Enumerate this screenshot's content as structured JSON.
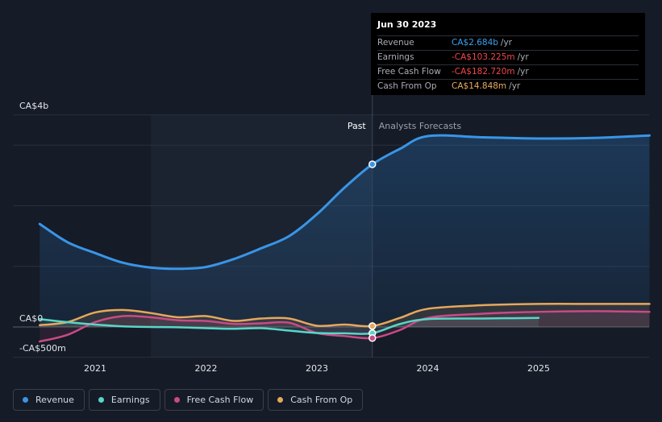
{
  "tooltip": {
    "date": "Jun 30 2023",
    "rows": [
      {
        "label": "Revenue",
        "value": "CA$2.684b",
        "unit": "/yr",
        "color": "#3ea0f0"
      },
      {
        "label": "Earnings",
        "value": "-CA$103.225m",
        "unit": "/yr",
        "color": "#f0464a"
      },
      {
        "label": "Free Cash Flow",
        "value": "-CA$182.720m",
        "unit": "/yr",
        "color": "#f0464a"
      },
      {
        "label": "Cash From Op",
        "value": "CA$14.848m",
        "unit": "/yr",
        "color": "#e9ab5e"
      }
    ]
  },
  "legend": [
    {
      "label": "Revenue",
      "color": "#3a95e6"
    },
    {
      "label": "Earnings",
      "color": "#58d6c8"
    },
    {
      "label": "Free Cash Flow",
      "color": "#c84b86"
    },
    {
      "label": "Cash From Op",
      "color": "#e6a85c"
    }
  ],
  "chart_data": {
    "type": "line",
    "past_label": "Past",
    "forecast_label": "Analysts Forecasts",
    "y_labels": [
      "CA$4b",
      "CA$0",
      "-CA$500m"
    ],
    "y_label_values": [
      4000,
      0,
      -500
    ],
    "ylim": [
      -500,
      4000
    ],
    "grid_lines": [
      -500,
      0,
      1000,
      2000,
      3000,
      3500
    ],
    "x_tick_labels": [
      "2021",
      "2022",
      "2023",
      "2024",
      "2025"
    ],
    "x_tick_values": [
      2021.0,
      2022.0,
      2023.0,
      2024.0,
      2025.0
    ],
    "xlim": [
      2020.25,
      2026.0
    ],
    "past_region": [
      2021.5,
      2023.5
    ],
    "divider_x": 2023.5,
    "series": [
      {
        "name": "Revenue",
        "color": "#3a95e6",
        "fill": true,
        "x": [
          2020.5,
          2020.75,
          2021.0,
          2021.25,
          2021.5,
          2021.75,
          2022.0,
          2022.25,
          2022.5,
          2022.75,
          2023.0,
          2023.25,
          2023.5,
          2023.75,
          2024.0,
          2024.5,
          2025.0,
          2025.5,
          2026.0
        ],
        "y": [
          1700,
          1400,
          1220,
          1060,
          980,
          960,
          990,
          1120,
          1300,
          1500,
          1860,
          2300,
          2684,
          2940,
          3150,
          3130,
          3110,
          3120,
          3160
        ],
        "marker_x": 2023.5,
        "marker_y": 2684
      },
      {
        "name": "Earnings",
        "color": "#58d6c8",
        "fill": false,
        "x": [
          2020.5,
          2020.75,
          2021.0,
          2021.25,
          2021.5,
          2021.75,
          2022.0,
          2022.25,
          2022.5,
          2022.75,
          2023.0,
          2023.25,
          2023.5,
          2023.75,
          2024.0,
          2024.5,
          2025.0
        ],
        "y": [
          130,
          80,
          40,
          10,
          0,
          -5,
          -20,
          -30,
          -20,
          -60,
          -100,
          -105,
          -103,
          50,
          130,
          140,
          150
        ],
        "marker_x": 2023.5,
        "marker_y": -103
      },
      {
        "name": "Free Cash Flow",
        "color": "#c84b86",
        "fill": false,
        "x": [
          2020.5,
          2020.75,
          2021.0,
          2021.25,
          2021.5,
          2021.75,
          2022.0,
          2022.25,
          2022.5,
          2022.75,
          2023.0,
          2023.25,
          2023.5,
          2023.75,
          2024.0,
          2024.5,
          2025.0,
          2025.5,
          2026.0
        ],
        "y": [
          -240,
          -130,
          80,
          180,
          160,
          110,
          100,
          50,
          60,
          70,
          -100,
          -150,
          -183,
          -50,
          150,
          220,
          250,
          260,
          250
        ],
        "marker_x": 2023.5,
        "marker_y": -183
      },
      {
        "name": "Cash From Op",
        "color": "#e6a85c",
        "fill": false,
        "x": [
          2020.5,
          2020.75,
          2021.0,
          2021.25,
          2021.5,
          2021.75,
          2022.0,
          2022.25,
          2022.5,
          2022.75,
          2023.0,
          2023.25,
          2023.5,
          2023.75,
          2024.0,
          2024.5,
          2025.0,
          2025.5,
          2026.0
        ],
        "y": [
          30,
          80,
          240,
          280,
          230,
          160,
          180,
          100,
          140,
          140,
          20,
          40,
          15,
          150,
          300,
          360,
          380,
          380,
          380
        ],
        "marker_x": 2023.5,
        "marker_y": 15
      }
    ]
  }
}
